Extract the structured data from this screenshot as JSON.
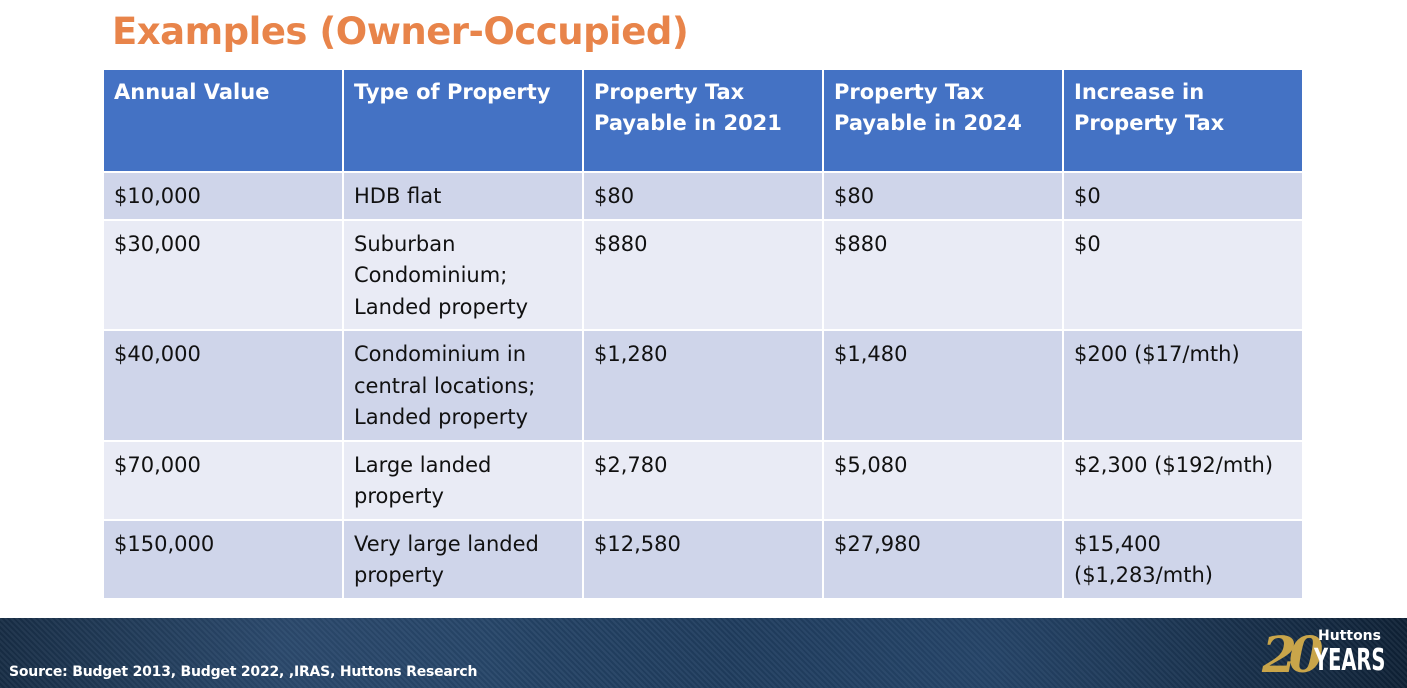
{
  "title": "Examples (Owner-Occupied)",
  "table": {
    "headers": [
      "Annual Value",
      "Type of Property",
      "Property Tax Payable in 2021",
      "Property Tax Payable in 2024",
      "Increase in Property Tax"
    ],
    "rows": [
      [
        "$10,000",
        "HDB flat",
        "$80",
        "$80",
        "$0"
      ],
      [
        "$30,000",
        "Suburban Condominium; Landed property",
        "$880",
        "$880",
        "$0"
      ],
      [
        "$40,000",
        "Condominium in central locations; Landed property",
        "$1,280",
        "$1,480",
        "$200 ($17/mth)"
      ],
      [
        "$70,000",
        "Large landed property",
        "$2,780",
        "$5,080",
        "$2,300 ($192/mth)"
      ],
      [
        "$150,000",
        "Very large landed property",
        "$12,580",
        "$27,980",
        "$15,400 ($1,283/mth)"
      ]
    ]
  },
  "footer": {
    "source": "Source: Budget 2013, Budget 2022, ,IRAS, Huttons Research",
    "logo": {
      "number": "20",
      "brand": "Huttons",
      "years": "YEARS"
    }
  },
  "colors": {
    "title": "#E8844A",
    "header_bg": "#4472C4",
    "row_dark": "#CFD5EA",
    "row_light": "#E9EBF5",
    "logo_gold": "#C9A54A"
  }
}
